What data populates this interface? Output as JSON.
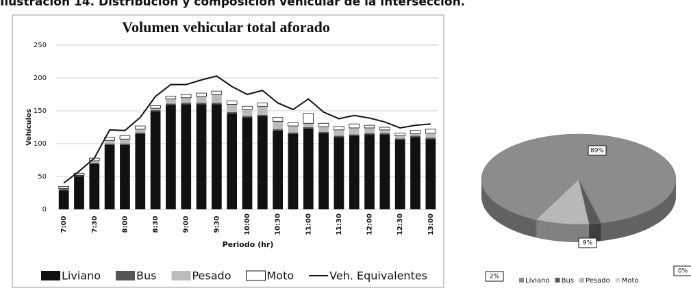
{
  "heading": "Ilustración 14. Distribución y composición vehicular de la intersección.",
  "chart_data": [
    {
      "type": "bar",
      "stacked": true,
      "title": "Volumen vehicular total aforado",
      "y_label": "Vehículos",
      "x_label": "Periodo (hr)",
      "categories": [
        "7:00",
        null,
        "7:30",
        null,
        "8:00",
        null,
        "8:30",
        null,
        "9:00",
        null,
        "9:30",
        null,
        "10:00",
        null,
        "10:30",
        null,
        "11:00",
        null,
        "11:30",
        null,
        "12:00",
        null,
        "12:30",
        null,
        "13:00"
      ],
      "series": [
        {
          "name": "Liviano",
          "color": "#111111",
          "values": [
            29,
            50,
            69,
            98,
            98,
            115,
            149,
            159,
            160,
            160,
            160,
            146,
            140,
            142,
            120,
            115,
            123,
            116,
            110,
            112,
            114,
            114,
            106,
            110,
            107
          ]
        },
        {
          "name": "Bus",
          "color": "#555555",
          "values": [
            2,
            2,
            2,
            2,
            2,
            2,
            2,
            2,
            2,
            2,
            2,
            2,
            2,
            2,
            2,
            2,
            2,
            2,
            2,
            2,
            2,
            2,
            2,
            2,
            2
          ]
        },
        {
          "name": "Pesado",
          "color": "#bbbbbb",
          "values": [
            1,
            0,
            3,
            5,
            7,
            5,
            3,
            7,
            8,
            10,
            13,
            12,
            10,
            13,
            12,
            10,
            6,
            8,
            9,
            10,
            8,
            5,
            4,
            3,
            7
          ]
        },
        {
          "name": "Moto",
          "color": "#ffffff",
          "values": [
            3,
            3,
            4,
            5,
            5,
            5,
            4,
            4,
            5,
            5,
            5,
            5,
            5,
            5,
            6,
            5,
            15,
            5,
            5,
            6,
            4,
            4,
            4,
            5,
            6
          ]
        },
        {
          "name": "Veh. Equivalentes",
          "type": "line",
          "color": "#111111",
          "values": [
            40,
            58,
            78,
            121,
            120,
            140,
            172,
            190,
            190,
            197,
            203,
            187,
            175,
            181,
            162,
            152,
            168,
            148,
            138,
            143,
            139,
            133,
            124,
            128,
            130
          ]
        }
      ],
      "ylim": [
        0,
        250
      ],
      "yticks": [
        0,
        50,
        100,
        150,
        200,
        250
      ],
      "grid": true,
      "legend": "bottom"
    },
    {
      "type": "pie",
      "categories": [
        "Liviano",
        "Bus",
        "Pesado",
        "Moto"
      ],
      "values": [
        89,
        2,
        9,
        0
      ],
      "value_labels": [
        "89%",
        "2%",
        "9%",
        "0%"
      ],
      "colors": [
        "#8c8c8c",
        "#5a5a5a",
        "#b8b8b8",
        "#d6d6d6"
      ],
      "legend": "bottom"
    }
  ]
}
